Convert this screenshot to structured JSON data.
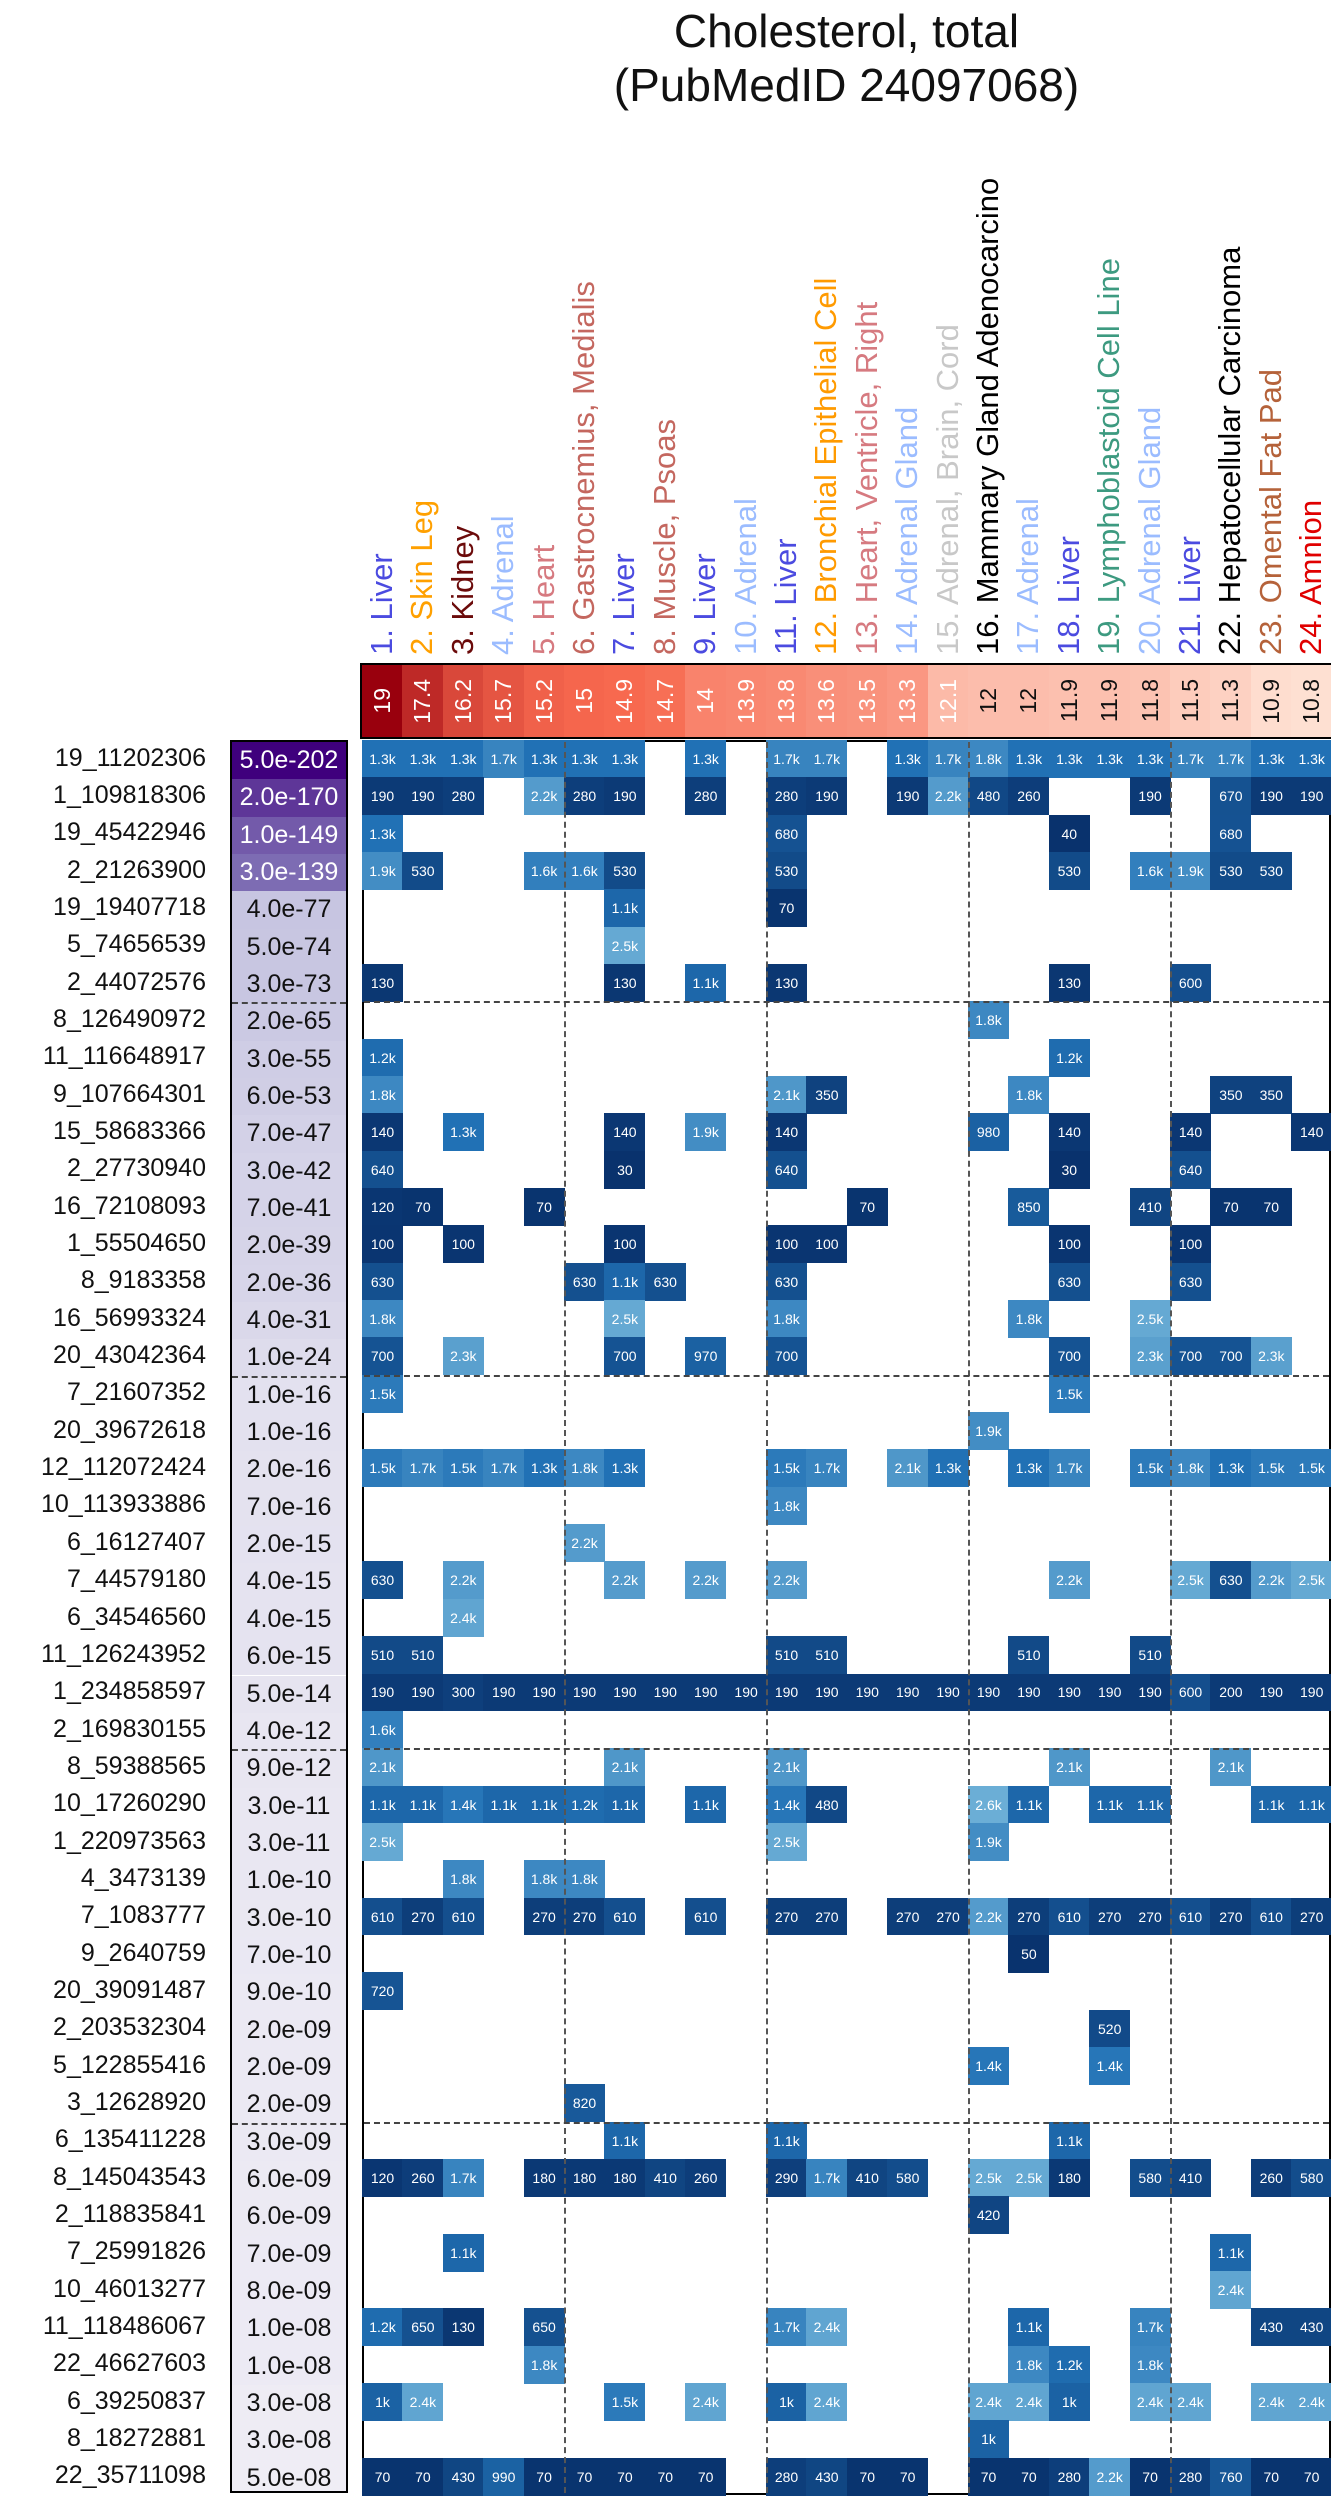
{
  "chart_data": {
    "type": "heatmap",
    "title": "Cholesterol, total",
    "subtitle": "(PubMedID 24097068)",
    "columns": [
      {
        "label": "1. Liver",
        "color": "#4b4be0",
        "score": "19"
      },
      {
        "label": "2. Skin Leg",
        "color": "#ffa000",
        "score": "17.4"
      },
      {
        "label": "3. Kidney",
        "color": "#6b0a0a",
        "score": "16.2"
      },
      {
        "label": "4. Adrenal",
        "color": "#9bbcff",
        "score": "15.7"
      },
      {
        "label": "5. Heart",
        "color": "#d67a80",
        "score": "15.2"
      },
      {
        "label": "6. Gastrocnemius, Medialis",
        "color": "#c4675f",
        "score": "15"
      },
      {
        "label": "7. Liver",
        "color": "#4b4be0",
        "score": "14.9"
      },
      {
        "label": "8. Muscle, Psoas",
        "color": "#c4675f",
        "score": "14.7"
      },
      {
        "label": "9. Liver",
        "color": "#4b4be0",
        "score": "14"
      },
      {
        "label": "10. Adrenal",
        "color": "#9bbcff",
        "score": "13.9"
      },
      {
        "label": "11. Liver",
        "color": "#4b4be0",
        "score": "13.8"
      },
      {
        "label": "12. Bronchial Epithelial Cell",
        "color": "#ff9a00",
        "score": "13.6"
      },
      {
        "label": "13. Heart, Ventricle, Right",
        "color": "#d67a80",
        "score": "13.5"
      },
      {
        "label": "14. Adrenal Gland",
        "color": "#9bbcff",
        "score": "13.3"
      },
      {
        "label": "15. Adrenal, Brain, Cord",
        "color": "#c8c8c8",
        "score": "12.1"
      },
      {
        "label": "16. Mammary Gland Adenocarcino",
        "color": "#000000",
        "score": "12"
      },
      {
        "label": "17. Adrenal",
        "color": "#9bbcff",
        "score": "12"
      },
      {
        "label": "18. Liver",
        "color": "#4b4be0",
        "score": "11.9"
      },
      {
        "label": "19. Lymphoblastoid Cell Line",
        "color": "#3d9a80",
        "score": "11.9"
      },
      {
        "label": "20. Adrenal Gland",
        "color": "#9bbcff",
        "score": "11.8"
      },
      {
        "label": "21. Liver",
        "color": "#4b4be0",
        "score": "11.5"
      },
      {
        "label": "22. Hepatocellular Carcinoma",
        "color": "#000000",
        "score": "11.3"
      },
      {
        "label": "23. Omental Fat Pad",
        "color": "#b5623a",
        "score": "10.9"
      },
      {
        "label": "24. Amnion",
        "color": "#e00000",
        "score": "10.8"
      }
    ],
    "rows": [
      {
        "label": "19_11202306",
        "p": "5.0e-202",
        "cells": {
          "1": "1.3k",
          "2": "1.3k",
          "3": "1.3k",
          "4": "1.7k",
          "5": "1.3k",
          "6": "1.3k",
          "7": "1.3k",
          "9": "1.3k",
          "11": "1.7k",
          "12": "1.7k",
          "14": "1.3k",
          "15": "1.7k",
          "16": "1.8k",
          "17": "1.3k",
          "18": "1.3k",
          "19": "1.3k",
          "20": "1.3k",
          "21": "1.7k",
          "22": "1.7k",
          "23": "1.3k",
          "24": "1.3k"
        }
      },
      {
        "label": "1_109818306",
        "p": "2.0e-170",
        "cells": {
          "1": "190",
          "2": "190",
          "3": "280",
          "5": "2.2k",
          "6": "280",
          "7": "190",
          "9": "280",
          "11": "280",
          "12": "190",
          "14": "190",
          "15": "2.2k",
          "16": "480",
          "17": "260",
          "20": "190",
          "22": "670",
          "23": "190",
          "24": "190"
        }
      },
      {
        "label": "19_45422946",
        "p": "1.0e-149",
        "cells": {
          "1": "1.3k",
          "11": "680",
          "18": "40",
          "22": "680"
        }
      },
      {
        "label": "2_21263900",
        "p": "3.0e-139",
        "cells": {
          "1": "1.9k",
          "2": "530",
          "5": "1.6k",
          "6": "1.6k",
          "7": "530",
          "11": "530",
          "18": "530",
          "20": "1.6k",
          "21": "1.9k",
          "22": "530",
          "23": "530"
        }
      },
      {
        "label": "19_19407718",
        "p": "4.0e-77",
        "cells": {
          "7": "1.1k",
          "11": "70"
        }
      },
      {
        "label": "5_74656539",
        "p": "5.0e-74",
        "cells": {
          "7": "2.5k"
        }
      },
      {
        "label": "2_44072576",
        "p": "3.0e-73",
        "cells": {
          "1": "130",
          "7": "130",
          "9": "1.1k",
          "11": "130",
          "18": "130",
          "21": "600"
        }
      },
      {
        "label": "8_126490972",
        "p": "2.0e-65",
        "cells": {
          "16": "1.8k"
        }
      },
      {
        "label": "11_116648917",
        "p": "3.0e-55",
        "cells": {
          "1": "1.2k",
          "18": "1.2k"
        }
      },
      {
        "label": "9_107664301",
        "p": "6.0e-53",
        "cells": {
          "1": "1.8k",
          "11": "2.1k",
          "12": "350",
          "17": "1.8k",
          "22": "350",
          "23": "350"
        }
      },
      {
        "label": "15_58683366",
        "p": "7.0e-47",
        "cells": {
          "1": "140",
          "3": "1.3k",
          "7": "140",
          "9": "1.9k",
          "11": "140",
          "16": "980",
          "18": "140",
          "21": "140",
          "24": "140"
        }
      },
      {
        "label": "2_27730940",
        "p": "3.0e-42",
        "cells": {
          "1": "640",
          "7": "30",
          "11": "640",
          "18": "30",
          "21": "640"
        }
      },
      {
        "label": "16_72108093",
        "p": "7.0e-41",
        "cells": {
          "1": "120",
          "2": "70",
          "5": "70",
          "13": "70",
          "17": "850",
          "20": "410",
          "22": "70",
          "23": "70"
        }
      },
      {
        "label": "1_55504650",
        "p": "2.0e-39",
        "cells": {
          "1": "100",
          "3": "100",
          "7": "100",
          "11": "100",
          "12": "100",
          "18": "100",
          "21": "100"
        }
      },
      {
        "label": "8_9183358",
        "p": "2.0e-36",
        "cells": {
          "1": "630",
          "6": "630",
          "7": "1.1k",
          "8": "630",
          "11": "630",
          "18": "630",
          "21": "630"
        }
      },
      {
        "label": "16_56993324",
        "p": "4.0e-31",
        "cells": {
          "1": "1.8k",
          "7": "2.5k",
          "11": "1.8k",
          "17": "1.8k",
          "20": "2.5k"
        }
      },
      {
        "label": "20_43042364",
        "p": "1.0e-24",
        "cells": {
          "1": "700",
          "3": "2.3k",
          "7": "700",
          "9": "970",
          "11": "700",
          "18": "700",
          "20": "2.3k",
          "21": "700",
          "22": "700",
          "23": "2.3k"
        }
      },
      {
        "label": "7_21607352",
        "p": "1.0e-16",
        "cells": {
          "1": "1.5k",
          "18": "1.5k"
        }
      },
      {
        "label": "20_39672618",
        "p": "1.0e-16",
        "cells": {
          "16": "1.9k"
        }
      },
      {
        "label": "12_112072424",
        "p": "2.0e-16",
        "cells": {
          "1": "1.5k",
          "2": "1.7k",
          "3": "1.5k",
          "4": "1.7k",
          "5": "1.3k",
          "6": "1.8k",
          "7": "1.3k",
          "11": "1.5k",
          "12": "1.7k",
          "14": "2.1k",
          "15": "1.3k",
          "17": "1.3k",
          "18": "1.7k",
          "20": "1.5k",
          "21": "1.8k",
          "22": "1.3k",
          "23": "1.5k",
          "24": "1.5k"
        }
      },
      {
        "label": "10_113933886",
        "p": "7.0e-16",
        "cells": {
          "11": "1.8k"
        }
      },
      {
        "label": "6_16127407",
        "p": "2.0e-15",
        "cells": {
          "6": "2.2k"
        }
      },
      {
        "label": "7_44579180",
        "p": "4.0e-15",
        "cells": {
          "1": "630",
          "3": "2.2k",
          "7": "2.2k",
          "9": "2.2k",
          "11": "2.2k",
          "18": "2.2k",
          "21": "2.5k",
          "22": "630",
          "23": "2.2k",
          "24": "2.5k"
        }
      },
      {
        "label": "6_34546560",
        "p": "4.0e-15",
        "cells": {
          "3": "2.4k"
        }
      },
      {
        "label": "11_126243952",
        "p": "6.0e-15",
        "cells": {
          "1": "510",
          "2": "510",
          "11": "510",
          "12": "510",
          "17": "510",
          "20": "510"
        }
      },
      {
        "label": "1_234858597",
        "p": "5.0e-14",
        "cells": {
          "1": "190",
          "2": "190",
          "3": "300",
          "4": "190",
          "5": "190",
          "6": "190",
          "7": "190",
          "8": "190",
          "9": "190",
          "10": "190",
          "11": "190",
          "12": "190",
          "13": "190",
          "14": "190",
          "15": "190",
          "16": "190",
          "17": "190",
          "18": "190",
          "19": "190",
          "20": "190",
          "21": "600",
          "22": "200",
          "23": "190",
          "24": "190"
        }
      },
      {
        "label": "2_169830155",
        "p": "4.0e-12",
        "cells": {
          "1": "1.6k"
        }
      },
      {
        "label": "8_59388565",
        "p": "9.0e-12",
        "cells": {
          "1": "2.1k",
          "7": "2.1k",
          "11": "2.1k",
          "18": "2.1k",
          "22": "2.1k"
        }
      },
      {
        "label": "10_17260290",
        "p": "3.0e-11",
        "cells": {
          "1": "1.1k",
          "2": "1.1k",
          "3": "1.4k",
          "4": "1.1k",
          "5": "1.1k",
          "6": "1.2k",
          "7": "1.1k",
          "9": "1.1k",
          "11": "1.4k",
          "12": "480",
          "16": "2.6k",
          "17": "1.1k",
          "19": "1.1k",
          "20": "1.1k",
          "23": "1.1k",
          "24": "1.1k"
        }
      },
      {
        "label": "1_220973563",
        "p": "3.0e-11",
        "cells": {
          "1": "2.5k",
          "11": "2.5k",
          "16": "1.9k"
        }
      },
      {
        "label": "4_3473139",
        "p": "1.0e-10",
        "cells": {
          "3": "1.8k",
          "5": "1.8k",
          "6": "1.8k"
        }
      },
      {
        "label": "7_1083777",
        "p": "3.0e-10",
        "cells": {
          "1": "610",
          "2": "270",
          "3": "610",
          "5": "270",
          "6": "270",
          "7": "610",
          "9": "610",
          "11": "270",
          "12": "270",
          "14": "270",
          "15": "270",
          "16": "2.2k",
          "17": "270",
          "18": "610",
          "19": "270",
          "20": "270",
          "21": "610",
          "22": "270",
          "23": "610",
          "24": "270"
        }
      },
      {
        "label": "9_2640759",
        "p": "7.0e-10",
        "cells": {
          "17": "50"
        }
      },
      {
        "label": "20_39091487",
        "p": "9.0e-10",
        "cells": {
          "1": "720"
        }
      },
      {
        "label": "2_203532304",
        "p": "2.0e-09",
        "cells": {
          "19": "520"
        }
      },
      {
        "label": "5_122855416",
        "p": "2.0e-09",
        "cells": {
          "16": "1.4k",
          "19": "1.4k"
        }
      },
      {
        "label": "3_12628920",
        "p": "2.0e-09",
        "cells": {
          "6": "820"
        }
      },
      {
        "label": "6_135411228",
        "p": "3.0e-09",
        "cells": {
          "7": "1.1k",
          "11": "1.1k",
          "18": "1.1k"
        }
      },
      {
        "label": "8_145043543",
        "p": "6.0e-09",
        "cells": {
          "1": "120",
          "2": "260",
          "3": "1.7k",
          "5": "180",
          "6": "180",
          "7": "180",
          "8": "410",
          "9": "260",
          "11": "290",
          "12": "1.7k",
          "13": "410",
          "14": "580",
          "16": "2.5k",
          "17": "2.5k",
          "18": "180",
          "20": "580",
          "21": "410",
          "23": "260",
          "24": "580"
        }
      },
      {
        "label": "2_118835841",
        "p": "6.0e-09",
        "cells": {
          "16": "420"
        }
      },
      {
        "label": "7_25991826",
        "p": "7.0e-09",
        "cells": {
          "3": "1.1k",
          "22": "1.1k"
        }
      },
      {
        "label": "10_46013277",
        "p": "8.0e-09",
        "cells": {
          "22": "2.4k"
        }
      },
      {
        "label": "11_118486067",
        "p": "1.0e-08",
        "cells": {
          "1": "1.2k",
          "2": "650",
          "3": "130",
          "5": "650",
          "11": "1.7k",
          "12": "2.4k",
          "17": "1.1k",
          "20": "1.7k",
          "23": "430",
          "24": "430"
        }
      },
      {
        "label": "22_46627603",
        "p": "1.0e-08",
        "cells": {
          "5": "1.8k",
          "17": "1.8k",
          "18": "1.2k",
          "20": "1.8k"
        }
      },
      {
        "label": "6_39250837",
        "p": "3.0e-08",
        "cells": {
          "1": "1k",
          "2": "2.4k",
          "7": "1.5k",
          "9": "2.4k",
          "11": "1k",
          "12": "2.4k",
          "16": "2.4k",
          "17": "2.4k",
          "18": "1k",
          "20": "2.4k",
          "21": "2.4k",
          "23": "2.4k",
          "24": "2.4k"
        }
      },
      {
        "label": "8_18272881",
        "p": "3.0e-08",
        "cells": {
          "16": "1k"
        }
      },
      {
        "label": "22_35711098",
        "p": "5.0e-08",
        "cells": {
          "1": "70",
          "2": "70",
          "3": "430",
          "4": "990",
          "5": "70",
          "6": "70",
          "7": "70",
          "8": "70",
          "9": "70",
          "11": "280",
          "12": "430",
          "13": "70",
          "14": "70",
          "16": "70",
          "17": "70",
          "18": "280",
          "19": "2.2k",
          "20": "70",
          "21": "280",
          "22": "760",
          "23": "70",
          "24": "70"
        }
      }
    ],
    "row_group_breaks_after": [
      7,
      17,
      27,
      37
    ],
    "column_group_breaks_after": [
      5,
      10,
      15,
      20
    ],
    "colors": {
      "cell_dark": "#08306b",
      "cell_mid": "#2171b5",
      "cell_light": "#6baed6",
      "p_dark": "#3f007d",
      "p_light": "#efedf5",
      "score_high": "#99000d",
      "score_low": "#fee0d2"
    }
  }
}
